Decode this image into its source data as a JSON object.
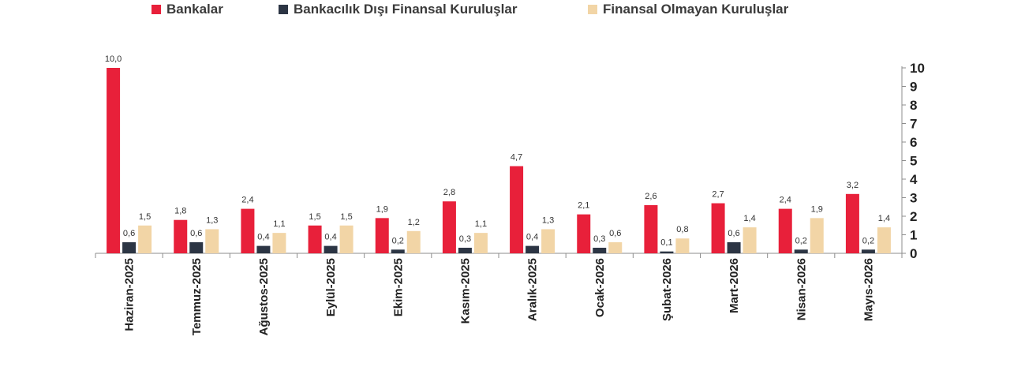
{
  "chart_data": {
    "type": "bar",
    "categories": [
      "Haziran-2025",
      "Temmuz-2025",
      "Ağustos-2025",
      "Eylül-2025",
      "Ekim-2025",
      "Kasım-2025",
      "Aralık-2025",
      "Ocak-2026",
      "Şubat-2026",
      "Mart-2026",
      "Nisan-2026",
      "Mayıs-2026"
    ],
    "series": [
      {
        "name": "Bankalar",
        "color": "#e8203a",
        "values": [
          10.0,
          1.8,
          2.4,
          1.5,
          1.9,
          2.8,
          4.7,
          2.1,
          2.6,
          2.7,
          2.4,
          3.2
        ],
        "labels": [
          "10,0",
          "1,8",
          "2,4",
          "1,5",
          "1,9",
          "2,8",
          "4,7",
          "2,1",
          "2,6",
          "2,7",
          "2,4",
          "3,2"
        ]
      },
      {
        "name": "Bankacılık Dışı Finansal Kuruluşlar",
        "color": "#2c3544",
        "values": [
          0.6,
          0.6,
          0.4,
          0.4,
          0.2,
          0.3,
          0.4,
          0.3,
          0.1,
          0.6,
          0.2,
          0.2
        ],
        "labels": [
          "0,6",
          "0,6",
          "0,4",
          "0,4",
          "0,2",
          "0,3",
          "0,4",
          "0,3",
          "0,1",
          "0,6",
          "0,2",
          "0,2"
        ]
      },
      {
        "name": "Finansal Olmayan Kuruluşlar",
        "color": "#f2d5a6",
        "values": [
          1.5,
          1.3,
          1.1,
          1.5,
          1.2,
          1.1,
          1.3,
          0.6,
          0.8,
          1.4,
          1.9,
          1.4
        ],
        "labels": [
          "1,5",
          "1,3",
          "1,1",
          "1,5",
          "1,2",
          "1,1",
          "1,3",
          "0,6",
          "0,8",
          "1,4",
          "1,9",
          "1,4"
        ]
      }
    ],
    "yticks": [
      "0",
      "1",
      "2",
      "3",
      "4",
      "5",
      "6",
      "7",
      "8",
      "9",
      "10"
    ],
    "ylim": [
      0,
      10
    ],
    "y_axis_position": "right",
    "legend_position": "top",
    "grid": false
  }
}
